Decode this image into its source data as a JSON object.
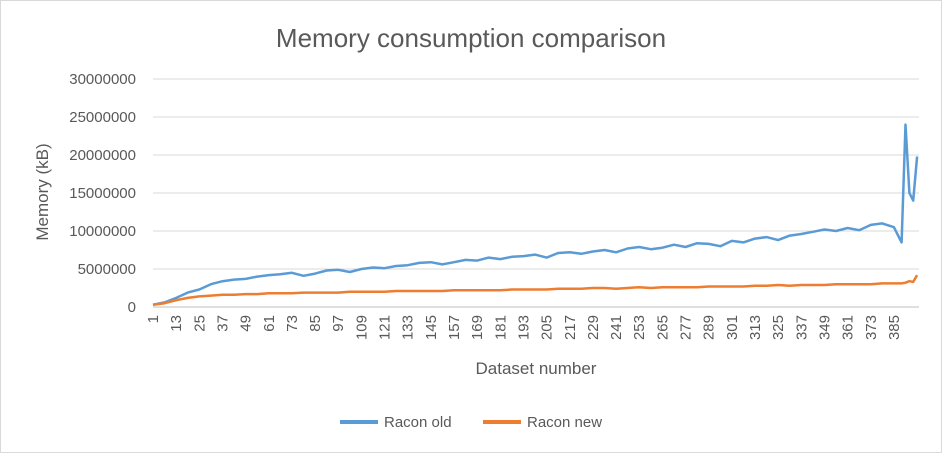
{
  "chart_data": {
    "type": "line",
    "title": "Memory consumption comparison",
    "xlabel": "Dataset number",
    "ylabel": "Memory (kB)",
    "ylim": [
      0,
      30000000
    ],
    "yticks": [
      0,
      5000000,
      10000000,
      15000000,
      20000000,
      25000000,
      30000000
    ],
    "ytick_labels": [
      "0",
      "5000000",
      "10000000",
      "15000000",
      "20000000",
      "25000000",
      "30000000"
    ],
    "xticks": [
      1,
      13,
      25,
      37,
      49,
      61,
      73,
      85,
      97,
      109,
      121,
      133,
      145,
      157,
      169,
      181,
      193,
      205,
      217,
      229,
      241,
      253,
      265,
      277,
      289,
      301,
      313,
      325,
      337,
      349,
      361,
      373,
      385
    ],
    "xlim": [
      1,
      398
    ],
    "grid": "horizontal",
    "legend": "bottom",
    "series": [
      {
        "name": "Racon old",
        "color": "#5b9bd5",
        "x": [
          1,
          7,
          13,
          19,
          25,
          31,
          37,
          43,
          49,
          55,
          61,
          67,
          73,
          79,
          85,
          91,
          97,
          103,
          109,
          115,
          121,
          127,
          133,
          139,
          145,
          151,
          157,
          163,
          169,
          175,
          181,
          187,
          193,
          199,
          205,
          211,
          217,
          223,
          229,
          235,
          241,
          247,
          253,
          259,
          265,
          271,
          277,
          283,
          289,
          295,
          301,
          307,
          313,
          319,
          325,
          331,
          337,
          343,
          349,
          355,
          361,
          367,
          373,
          379,
          385,
          389,
          391,
          393,
          395,
          397
        ],
        "values": [
          300000,
          600000,
          1200000,
          1900000,
          2300000,
          3000000,
          3400000,
          3600000,
          3700000,
          4000000,
          4200000,
          4300000,
          4500000,
          4100000,
          4400000,
          4800000,
          4900000,
          4600000,
          5000000,
          5200000,
          5100000,
          5400000,
          5500000,
          5800000,
          5900000,
          5600000,
          5900000,
          6200000,
          6100000,
          6500000,
          6300000,
          6600000,
          6700000,
          6900000,
          6500000,
          7100000,
          7200000,
          7000000,
          7300000,
          7500000,
          7200000,
          7700000,
          7900000,
          7600000,
          7800000,
          8200000,
          7900000,
          8400000,
          8300000,
          8000000,
          8700000,
          8500000,
          9000000,
          9200000,
          8800000,
          9400000,
          9600000,
          9900000,
          10200000,
          10000000,
          10400000,
          10100000,
          10800000,
          11000000,
          10500000,
          8500000,
          24000000,
          15000000,
          14000000,
          19800000
        ]
      },
      {
        "name": "Racon new",
        "color": "#ed7d31",
        "x": [
          1,
          7,
          13,
          19,
          25,
          31,
          37,
          43,
          49,
          55,
          61,
          67,
          73,
          79,
          85,
          91,
          97,
          103,
          109,
          115,
          121,
          127,
          133,
          139,
          145,
          151,
          157,
          163,
          169,
          175,
          181,
          187,
          193,
          199,
          205,
          211,
          217,
          223,
          229,
          235,
          241,
          247,
          253,
          259,
          265,
          271,
          277,
          283,
          289,
          295,
          301,
          307,
          313,
          319,
          325,
          331,
          337,
          343,
          349,
          355,
          361,
          367,
          373,
          379,
          385,
          389,
          391,
          393,
          395,
          397
        ],
        "values": [
          300000,
          500000,
          900000,
          1200000,
          1400000,
          1500000,
          1600000,
          1600000,
          1700000,
          1700000,
          1800000,
          1800000,
          1800000,
          1900000,
          1900000,
          1900000,
          1900000,
          2000000,
          2000000,
          2000000,
          2000000,
          2100000,
          2100000,
          2100000,
          2100000,
          2100000,
          2200000,
          2200000,
          2200000,
          2200000,
          2200000,
          2300000,
          2300000,
          2300000,
          2300000,
          2400000,
          2400000,
          2400000,
          2500000,
          2500000,
          2400000,
          2500000,
          2600000,
          2500000,
          2600000,
          2600000,
          2600000,
          2600000,
          2700000,
          2700000,
          2700000,
          2700000,
          2800000,
          2800000,
          2900000,
          2800000,
          2900000,
          2900000,
          2900000,
          3000000,
          3000000,
          3000000,
          3000000,
          3100000,
          3100000,
          3100000,
          3200000,
          3400000,
          3300000,
          4200000
        ]
      }
    ]
  }
}
